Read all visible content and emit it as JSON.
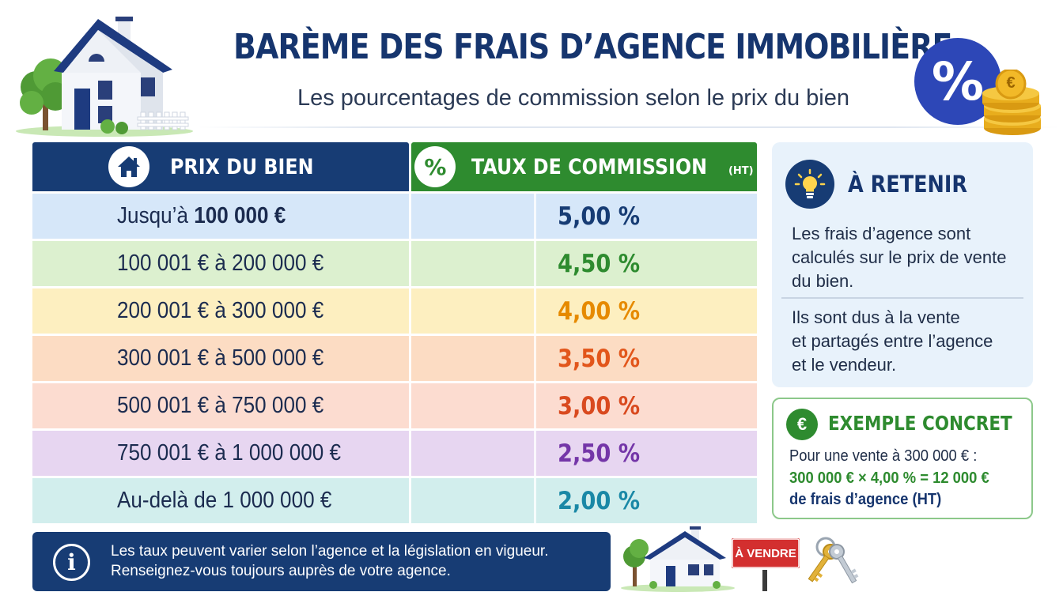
{
  "header": {
    "title": "BARÈME DES FRAIS D’AGENCE IMMOBILIÈRE",
    "subtitle": "Les pourcentages de commission selon le prix du bien"
  },
  "table": {
    "col_price": "PRIX DU BIEN",
    "col_rate": "TAUX DE COMMISSION",
    "col_rate_suffix": "(HT)",
    "col_rate_icon": "%",
    "rows": [
      {
        "price_prefix": "Jusqu’à ",
        "price_bold": "100 000 €",
        "price_rest": "",
        "rate": "5,00 %",
        "bg": "#d6e7f9",
        "rate_color": "#173c74"
      },
      {
        "price_prefix": "",
        "price_bold": "",
        "price_rest": "100 001 € à 200 000 €",
        "rate": "4,50 %",
        "bg": "#dcf0cf",
        "rate_color": "#2e8b2f"
      },
      {
        "price_prefix": "",
        "price_bold": "",
        "price_rest": "200 001 € à 300 000 €",
        "rate": "4,00 %",
        "bg": "#fdefc0",
        "rate_color": "#e68a00"
      },
      {
        "price_prefix": "",
        "price_bold": "",
        "price_rest": "300 001 € à 500 000 €",
        "rate": "3,50 %",
        "bg": "#fcdcc3",
        "rate_color": "#e2561b"
      },
      {
        "price_prefix": "",
        "price_bold": "",
        "price_rest": "500 001 € à 750 000 €",
        "rate": "3,00 %",
        "bg": "#fcdcd0",
        "rate_color": "#d94a1f"
      },
      {
        "price_prefix": "",
        "price_bold": "",
        "price_rest": "750 001 € à 1 000 000 €",
        "rate": "2,50 %",
        "bg": "#e7d6f1",
        "rate_color": "#7436a8"
      },
      {
        "price_prefix": "",
        "price_bold": "",
        "price_rest": "Au-delà de 1 000 000 €",
        "rate": "2,00 %",
        "bg": "#d2eeed",
        "rate_color": "#1a88a6"
      }
    ]
  },
  "retenir": {
    "title": "À RETENIR",
    "p1_l1": "Les frais d’agence sont",
    "p1_l2": "calculés sur le prix de vente",
    "p1_l3": "du bien.",
    "p2_l1": "Ils sont dus à la vente",
    "p2_l2": "et partagés entre l’agence",
    "p2_l3": "et le vendeur."
  },
  "exemple": {
    "badge": "€",
    "title": "EXEMPLE CONCRET",
    "line1": "Pour une vente à 300 000 € :",
    "line2": "300 000 € × 4,00 % = 12 000 €",
    "line3": "de frais d’agence (HT)"
  },
  "info": {
    "icon": "i",
    "line1": "Les taux peuvent varier selon l’agence et la législation en vigueur.",
    "line2": "Renseignez-vous toujours auprès de votre agence."
  },
  "badges": {
    "percent": "%",
    "coin": "€",
    "sign": "À VENDRE"
  },
  "colors": {
    "navy": "#173c74",
    "green": "#2e8b2f",
    "royal": "#2d47b7"
  }
}
